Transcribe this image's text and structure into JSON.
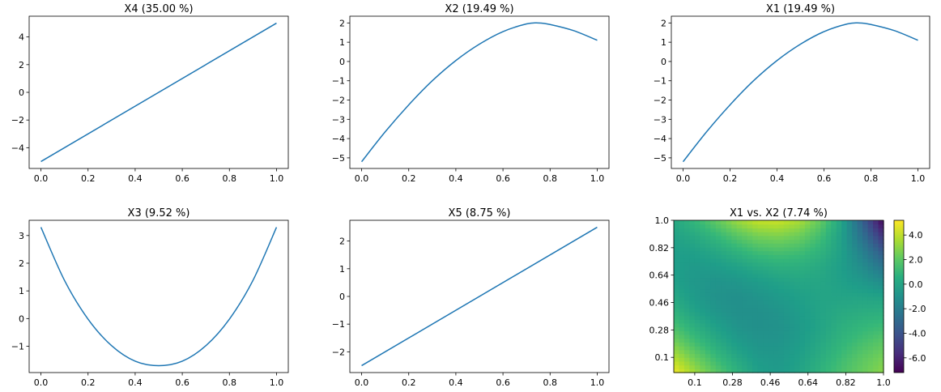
{
  "chart_data": [
    {
      "type": "line",
      "title": "X4 (35.00 %)",
      "x": [
        0.0,
        1.0
      ],
      "y": [
        -5.0,
        5.0
      ],
      "xlim": [
        -0.05,
        1.05
      ],
      "ylim": [
        -5.5,
        5.5
      ],
      "xticks": [
        0.0,
        0.2,
        0.4,
        0.6,
        0.8,
        1.0
      ],
      "xtick_labels": [
        "0.0",
        "0.2",
        "0.4",
        "0.6",
        "0.8",
        "1.0"
      ],
      "yticks": [
        -4,
        -2,
        0,
        2,
        4
      ],
      "ytick_labels": [
        "−4",
        "−2",
        "0",
        "2",
        "4"
      ],
      "color": "#1f77b4"
    },
    {
      "type": "line",
      "title": "X2 (19.49 %)",
      "x": [
        0.0,
        0.1,
        0.2,
        0.3,
        0.4,
        0.5,
        0.6,
        0.7,
        0.75,
        0.8,
        0.9,
        1.0
      ],
      "y": [
        -5.2,
        -3.65,
        -2.25,
        -1.0,
        0.05,
        0.9,
        1.55,
        1.95,
        2.0,
        1.92,
        1.6,
        1.1
      ],
      "xlim": [
        -0.05,
        1.05
      ],
      "ylim": [
        -5.55,
        2.35
      ],
      "xticks": [
        0.0,
        0.2,
        0.4,
        0.6,
        0.8,
        1.0
      ],
      "xtick_labels": [
        "0.0",
        "0.2",
        "0.4",
        "0.6",
        "0.8",
        "1.0"
      ],
      "yticks": [
        -5,
        -4,
        -3,
        -2,
        -1,
        0,
        1,
        2
      ],
      "ytick_labels": [
        "−5",
        "−4",
        "−3",
        "−2",
        "−1",
        "0",
        "1",
        "2"
      ],
      "color": "#1f77b4"
    },
    {
      "type": "line",
      "title": "X1 (19.49 %)",
      "x": [
        0.0,
        0.1,
        0.2,
        0.3,
        0.4,
        0.5,
        0.6,
        0.7,
        0.75,
        0.8,
        0.9,
        1.0
      ],
      "y": [
        -5.2,
        -3.65,
        -2.25,
        -1.0,
        0.05,
        0.9,
        1.55,
        1.95,
        2.0,
        1.92,
        1.6,
        1.1
      ],
      "xlim": [
        -0.05,
        1.05
      ],
      "ylim": [
        -5.55,
        2.35
      ],
      "xticks": [
        0.0,
        0.2,
        0.4,
        0.6,
        0.8,
        1.0
      ],
      "xtick_labels": [
        "0.0",
        "0.2",
        "0.4",
        "0.6",
        "0.8",
        "1.0"
      ],
      "yticks": [
        -5,
        -4,
        -3,
        -2,
        -1,
        0,
        1,
        2
      ],
      "ytick_labels": [
        "−5",
        "−4",
        "−3",
        "−2",
        "−1",
        "0",
        "1",
        "2"
      ],
      "color": "#1f77b4"
    },
    {
      "type": "line",
      "title": "X3 (9.52 %)",
      "x": [
        0.0,
        0.1,
        0.2,
        0.3,
        0.4,
        0.5,
        0.6,
        0.7,
        0.8,
        0.9,
        1.0
      ],
      "y": [
        3.3,
        1.38,
        -0.02,
        -0.98,
        -1.54,
        -1.7,
        -1.54,
        -0.98,
        -0.02,
        1.38,
        3.3
      ],
      "xlim": [
        -0.05,
        1.05
      ],
      "ylim": [
        -1.95,
        3.55
      ],
      "xticks": [
        0.0,
        0.2,
        0.4,
        0.6,
        0.8,
        1.0
      ],
      "xtick_labels": [
        "0.0",
        "0.2",
        "0.4",
        "0.6",
        "0.8",
        "1.0"
      ],
      "yticks": [
        -1,
        0,
        1,
        2,
        3
      ],
      "ytick_labels": [
        "−1",
        "0",
        "1",
        "2",
        "3"
      ],
      "color": "#1f77b4"
    },
    {
      "type": "line",
      "title": "X5 (8.75 %)",
      "x": [
        0.0,
        1.0
      ],
      "y": [
        -2.5,
        2.5
      ],
      "xlim": [
        -0.05,
        1.05
      ],
      "ylim": [
        -2.75,
        2.75
      ],
      "xticks": [
        0.0,
        0.2,
        0.4,
        0.6,
        0.8,
        1.0
      ],
      "xtick_labels": [
        "0.0",
        "0.2",
        "0.4",
        "0.6",
        "0.8",
        "1.0"
      ],
      "yticks": [
        -2,
        -1,
        0,
        1,
        2
      ],
      "ytick_labels": [
        "−2",
        "−1",
        "0",
        "1",
        "2"
      ],
      "color": "#1f77b4"
    },
    {
      "type": "heatmap",
      "title": "X1 vs. X2 (7.74 %)",
      "x": [
        0.0,
        0.1,
        0.2,
        0.3,
        0.4,
        0.5,
        0.6,
        0.7,
        0.8,
        0.9,
        1.0
      ],
      "y": [
        0.0,
        0.1,
        0.2,
        0.3,
        0.4,
        0.5,
        0.6,
        0.7,
        0.8,
        0.9,
        1.0
      ],
      "z_formula_note": "",
      "z": [
        [
          5.0,
          3.4,
          2.0,
          0.8,
          -0.2,
          -0.5,
          0.0,
          0.8,
          1.6,
          2.3,
          3.0
        ],
        [
          3.8,
          2.4,
          1.2,
          0.2,
          -0.5,
          -0.6,
          -0.2,
          0.5,
          1.3,
          2.0,
          2.6
        ],
        [
          2.6,
          1.4,
          0.4,
          -0.4,
          -0.8,
          -0.8,
          -0.4,
          0.2,
          0.9,
          1.5,
          2.0
        ],
        [
          1.6,
          0.6,
          -0.2,
          -0.8,
          -1.0,
          -0.9,
          -0.5,
          0.0,
          0.6,
          1.0,
          1.3
        ],
        [
          0.8,
          -0.1,
          -0.7,
          -1.0,
          -1.0,
          -0.8,
          -0.4,
          0.0,
          0.3,
          0.5,
          0.6
        ],
        [
          0.2,
          -0.5,
          -0.9,
          -1.0,
          -0.8,
          -0.5,
          -0.2,
          0.0,
          0.0,
          0.0,
          -0.1
        ],
        [
          -0.2,
          -0.6,
          -0.8,
          -0.7,
          -0.4,
          -0.1,
          0.1,
          0.1,
          -0.2,
          -0.6,
          -1.2
        ],
        [
          -0.3,
          -0.5,
          -0.4,
          -0.1,
          0.3,
          0.6,
          0.6,
          0.3,
          -0.3,
          -1.2,
          -2.4
        ],
        [
          -0.3,
          -0.2,
          0.2,
          0.8,
          1.4,
          1.6,
          1.4,
          0.8,
          -0.2,
          -1.8,
          -3.8
        ],
        [
          -0.1,
          0.3,
          1.0,
          1.9,
          2.6,
          2.8,
          2.4,
          1.4,
          -0.2,
          -2.6,
          -5.4
        ],
        [
          0.2,
          1.0,
          2.1,
          3.3,
          4.1,
          4.2,
          3.6,
          2.2,
          0.0,
          -3.4,
          -7.0
        ]
      ],
      "xlim": [
        0.0,
        1.0
      ],
      "ylim": [
        0.0,
        1.0
      ],
      "xticks": [
        0.1,
        0.28,
        0.46,
        0.64,
        0.82,
        1.0
      ],
      "xtick_labels": [
        "0.1",
        "0.28",
        "0.46",
        "0.64",
        "0.82",
        "1.0"
      ],
      "yticks": [
        0.1,
        0.28,
        0.46,
        0.64,
        0.82,
        1.0
      ],
      "ytick_labels": [
        "0.1",
        "0.28",
        "0.46",
        "0.64",
        "0.82",
        "1.0"
      ],
      "colorbar": {
        "zlim": [
          -7.2,
          5.2
        ],
        "ticks": [
          4.0,
          2.0,
          0.0,
          -2.0,
          -4.0,
          -6.0
        ],
        "tick_labels": [
          "4.0",
          "2.0",
          "0.0",
          "-2.0",
          "-4.0",
          "-6.0"
        ],
        "colormap": "viridis"
      }
    }
  ]
}
